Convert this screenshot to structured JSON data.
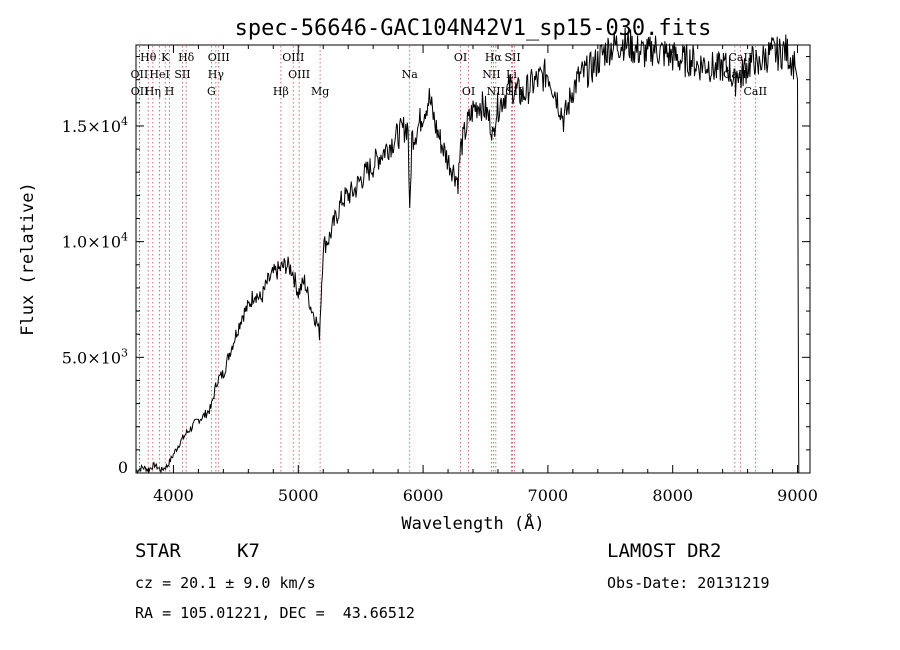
{
  "chart_data": {
    "type": "line",
    "title": "spec-56646-GAC104N42V1_sp15-030.fits",
    "xlabel": "Wavelength (Å)",
    "ylabel": "Flux (relative)",
    "xlim": [
      3700,
      9100
    ],
    "ylim": [
      0,
      18500
    ],
    "grid": false,
    "xticks": [
      {
        "value": 4000,
        "label": "4000"
      },
      {
        "value": 5000,
        "label": "5000"
      },
      {
        "value": 6000,
        "label": "6000"
      },
      {
        "value": 7000,
        "label": "7000"
      },
      {
        "value": 8000,
        "label": "8000"
      },
      {
        "value": 9000,
        "label": "9000"
      }
    ],
    "yticks": [
      {
        "value": 0,
        "label": "0"
      },
      {
        "value": 5000,
        "label": "5.0×10",
        "exp": "3"
      },
      {
        "value": 10000,
        "label": "1.0×10",
        "exp": "4"
      },
      {
        "value": 15000,
        "label": "1.5×10",
        "exp": "4"
      }
    ],
    "series": [
      {
        "x": [
          3700,
          3750,
          3800,
          3850,
          3900,
          3950,
          4000,
          4050,
          4100,
          4150,
          4200,
          4250,
          4300,
          4350,
          4400,
          4450,
          4500,
          4550,
          4600,
          4650,
          4700,
          4750,
          4800,
          4850,
          4900,
          4950,
          5000,
          5050,
          5100,
          5150,
          5170,
          5200,
          5250,
          5300,
          5350,
          5400,
          5450,
          5500,
          5550,
          5600,
          5650,
          5700,
          5750,
          5800,
          5850,
          5880,
          5893,
          5910,
          5950,
          6000,
          6050,
          6100,
          6150,
          6200,
          6250,
          6280,
          6300,
          6350,
          6400,
          6450,
          6500,
          6550,
          6563,
          6580,
          6620,
          6650,
          6700,
          6750,
          6800,
          6850,
          6900,
          6950,
          7000,
          7050,
          7100,
          7125,
          7150,
          7200,
          7250,
          7300,
          7350,
          7400,
          7450,
          7500,
          7550,
          7600,
          7650,
          7700,
          7750,
          7800,
          7850,
          7900,
          7950,
          8000,
          8050,
          8100,
          8150,
          8200,
          8250,
          8300,
          8350,
          8400,
          8450,
          8498,
          8520,
          8542,
          8570,
          8600,
          8662,
          8680,
          8700,
          8750,
          8800,
          8850,
          8900,
          8950,
          8980,
          9000,
          9010
        ],
        "y": [
          80,
          250,
          150,
          350,
          120,
          300,
          800,
          1300,
          1700,
          2000,
          2300,
          2500,
          2800,
          4000,
          4300,
          5200,
          6000,
          6800,
          7200,
          7800,
          7500,
          8200,
          8600,
          8800,
          9000,
          8800,
          7800,
          8300,
          7200,
          6500,
          6000,
          9800,
          10200,
          11000,
          11800,
          12000,
          12200,
          12700,
          13000,
          13300,
          13700,
          14000,
          14300,
          14600,
          14900,
          15000,
          11000,
          14500,
          14800,
          15600,
          16200,
          15000,
          14200,
          13500,
          13000,
          12600,
          14000,
          15000,
          15700,
          16000,
          15700,
          15000,
          14300,
          15600,
          16000,
          16300,
          16700,
          16500,
          16300,
          16700,
          16900,
          17100,
          17300,
          16600,
          15800,
          15300,
          15600,
          16600,
          17100,
          17300,
          17500,
          17800,
          18200,
          18400,
          18500,
          18600,
          18500,
          18300,
          18200,
          18100,
          18400,
          18200,
          18100,
          18000,
          17900,
          17800,
          17900,
          17600,
          17700,
          17600,
          17400,
          17600,
          17500,
          16800,
          17500,
          17000,
          17400,
          17600,
          17900,
          17200,
          17800,
          18000,
          18200,
          18100,
          18300,
          17900,
          17600,
          17000,
          0
        ]
      }
    ],
    "spectral_lines": [
      {
        "label": "Hθ",
        "wavelength": 3798,
        "row": 0
      },
      {
        "label": "K",
        "wavelength": 3934,
        "row": 0
      },
      {
        "label": "Hδ",
        "wavelength": 4102,
        "row": 0
      },
      {
        "label": "OIII",
        "wavelength": 4363,
        "row": 0
      },
      {
        "label": "OIII",
        "wavelength": 4960,
        "row": 0
      },
      {
        "label": "OI",
        "wavelength": 6300,
        "row": 0
      },
      {
        "label": "Hα",
        "wavelength": 6563,
        "row": 0
      },
      {
        "label": "SII",
        "wavelength": 6717,
        "row": 0
      },
      {
        "label": "CaII",
        "wavelength": 8542,
        "row": 0
      },
      {
        "label": "OII",
        "wavelength": 3727,
        "row": 1
      },
      {
        "label": "HeI",
        "wavelength": 3889,
        "row": 1
      },
      {
        "label": "SII",
        "wavelength": 4072,
        "row": 1
      },
      {
        "label": "Hγ",
        "wavelength": 4340,
        "row": 1
      },
      {
        "label": "OIII",
        "wavelength": 5007,
        "row": 1
      },
      {
        "label": "Na",
        "wavelength": 5893,
        "row": 1
      },
      {
        "label": "NII",
        "wavelength": 6548,
        "row": 1
      },
      {
        "label": "Li",
        "wavelength": 6708,
        "row": 1
      },
      {
        "label": "CaII",
        "wavelength": 8498,
        "row": 1
      },
      {
        "label": "OII",
        "wavelength": 3729,
        "row": 2
      },
      {
        "label": "Hη",
        "wavelength": 3835,
        "row": 2
      },
      {
        "label": "H",
        "wavelength": 3969,
        "row": 2
      },
      {
        "label": "G",
        "wavelength": 4304,
        "row": 2
      },
      {
        "label": "Hβ",
        "wavelength": 4861,
        "row": 2
      },
      {
        "label": "Mg",
        "wavelength": 5175,
        "row": 2
      },
      {
        "label": "OI",
        "wavelength": 6364,
        "row": 2
      },
      {
        "label": "NII",
        "wavelength": 6583,
        "row": 2
      },
      {
        "label": "SII",
        "wavelength": 6731,
        "row": 2
      },
      {
        "label": "CaII",
        "wavelength": 8662,
        "row": 2
      }
    ]
  },
  "info": {
    "object_class": "STAR",
    "subclass": "K7",
    "survey": "LAMOST DR2",
    "redshift_text": "cz = 20.1 ± 9.0 km/s",
    "obs_date_text": "Obs-Date: 20131219",
    "coords_text": "RA = 105.01221, DEC =  43.66512"
  }
}
